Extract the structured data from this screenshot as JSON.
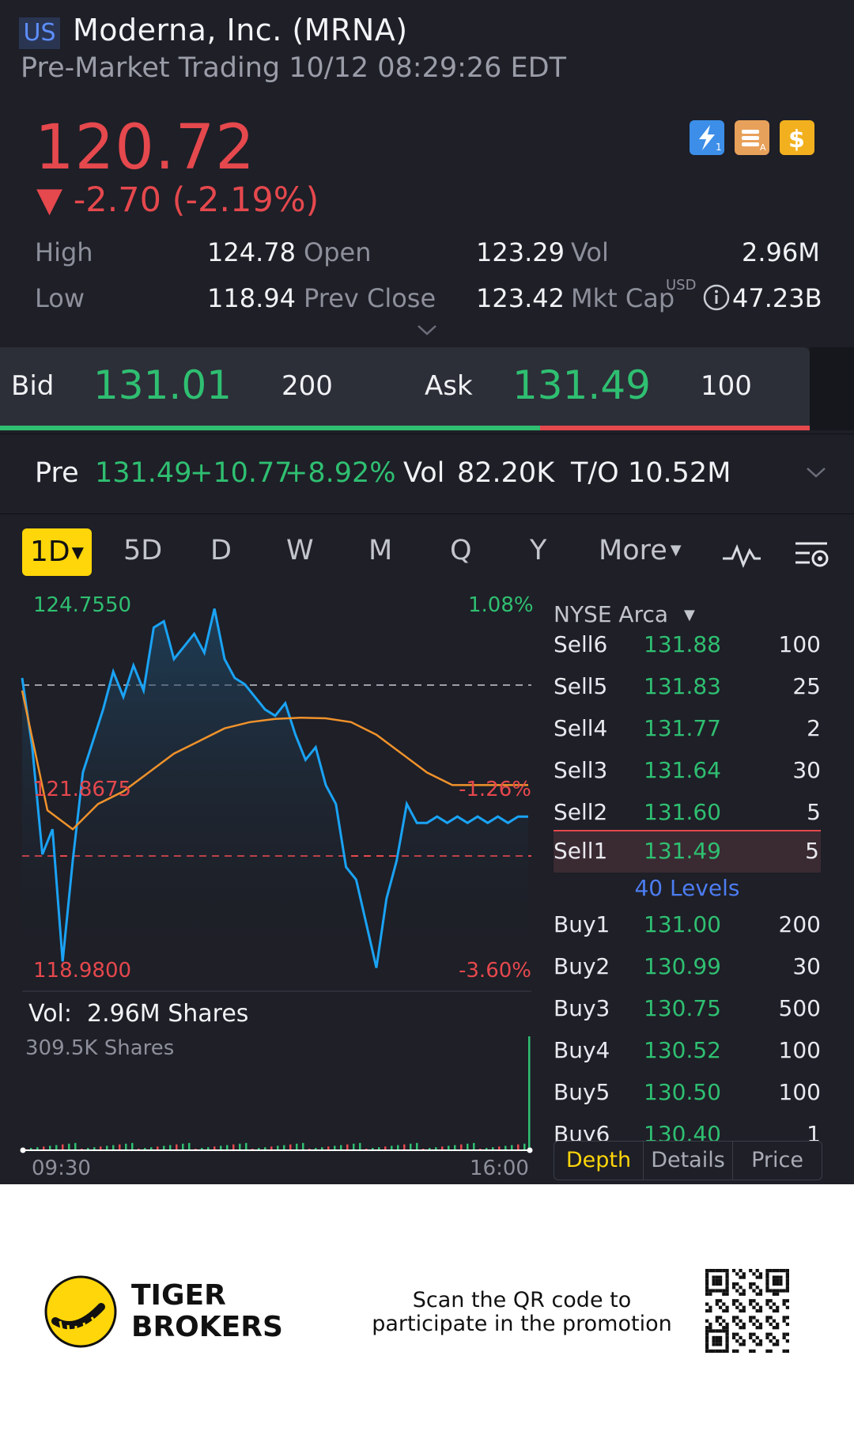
{
  "header": {
    "market": "US",
    "title": "Moderna, Inc. (MRNA)",
    "subtitle": "Pre-Market Trading 10/12 08:29:26 EDT"
  },
  "quote": {
    "price": "120.72",
    "change": "▼ -2.70 (-2.19%)",
    "badges": [
      "lightning-icon",
      "layers-icon",
      "dollar-icon"
    ],
    "stats": {
      "high_label": "High",
      "high": "124.78",
      "open_label": "Open",
      "open": "123.29",
      "vol_label": "Vol",
      "vol": "2.96M",
      "low_label": "Low",
      "low": "118.94",
      "prev_close_label": "Prev Close",
      "prev_close": "123.42",
      "mkt_cap_label": "Mkt Cap",
      "mkt_cap_unit": "USD",
      "mkt_cap": "47.23B"
    }
  },
  "bidask": {
    "bid_label": "Bid",
    "bid": "131.01",
    "bid_size": "200",
    "ask_label": "Ask",
    "ask": "131.49",
    "ask_size": "100",
    "bid_ratio": 0.667
  },
  "premarket": {
    "label": "Pre",
    "price": "131.49",
    "change": "+10.77",
    "pct": "+8.92%",
    "vol_label": "Vol",
    "vol": "82.20K",
    "to_label": "T/O",
    "to": "10.52M"
  },
  "periods": {
    "active": "1D",
    "items": [
      "5D",
      "D",
      "W",
      "M",
      "Q",
      "Y"
    ],
    "more": "More"
  },
  "chart": {
    "hi_price": "124.7550",
    "hi_pct": "1.08%",
    "mid_price": "121.8675",
    "mid_pct": "-1.26%",
    "lo_price": "118.9800",
    "lo_pct": "-3.60%",
    "vol_label": "Vol:",
    "vol_value": "2.96M Shares",
    "vol_max": "309.5K Shares",
    "time_start": "09:30",
    "time_end": "16:00"
  },
  "chart_data": {
    "type": "line",
    "title": "",
    "xlabel": "",
    "ylabel": "",
    "ylim": [
      118.98,
      124.755
    ],
    "x_range": [
      "09:30",
      "16:00"
    ],
    "reference_prev_close": 123.42,
    "series": [
      {
        "x": [
          0,
          2,
          4,
          6,
          8,
          10,
          12,
          14,
          16,
          18,
          20,
          22,
          24,
          26,
          28,
          30,
          32,
          34,
          36,
          38,
          40,
          42,
          44,
          46,
          48,
          50,
          52,
          54,
          56,
          58,
          60,
          62,
          64,
          66,
          68,
          70,
          72,
          74,
          76,
          78,
          80,
          82,
          84,
          86,
          88,
          90,
          92,
          94,
          96,
          98,
          100
        ],
        "y": [
          123.6,
          122.5,
          120.8,
          121.2,
          119.1,
          120.7,
          122.1,
          122.6,
          123.1,
          123.7,
          123.3,
          123.8,
          123.4,
          124.4,
          124.5,
          123.9,
          124.1,
          124.3,
          124.0,
          124.7,
          123.9,
          123.6,
          123.5,
          123.3,
          123.1,
          123.0,
          123.2,
          122.7,
          122.3,
          122.5,
          121.9,
          121.6,
          120.6,
          120.4,
          119.7,
          119.0,
          120.1,
          120.7,
          121.6,
          121.3,
          121.3,
          121.4,
          121.3,
          121.4,
          121.3,
          121.4,
          121.3,
          121.4,
          121.3,
          121.4,
          121.4
        ]
      },
      {
        "x": [
          0,
          5,
          10,
          15,
          20,
          25,
          30,
          35,
          40,
          45,
          50,
          55,
          60,
          65,
          70,
          75,
          80,
          85,
          90,
          95,
          100
        ],
        "y": [
          123.4,
          121.5,
          121.2,
          121.6,
          121.8,
          122.1,
          122.4,
          122.6,
          122.8,
          122.9,
          122.95,
          122.97,
          122.96,
          122.9,
          122.7,
          122.4,
          122.1,
          121.9,
          121.9,
          121.9,
          121.9
        ]
      }
    ]
  },
  "orderbook": {
    "exchange": "NYSE Arca",
    "sells": [
      {
        "label": "Sell6",
        "price": "131.88",
        "qty": "100"
      },
      {
        "label": "Sell5",
        "price": "131.83",
        "qty": "25"
      },
      {
        "label": "Sell4",
        "price": "131.77",
        "qty": "2"
      },
      {
        "label": "Sell3",
        "price": "131.64",
        "qty": "30"
      },
      {
        "label": "Sell2",
        "price": "131.60",
        "qty": "5"
      },
      {
        "label": "Sell1",
        "price": "131.49",
        "qty": "5"
      }
    ],
    "levels_link": "40 Levels",
    "buys": [
      {
        "label": "Buy1",
        "price": "131.00",
        "qty": "200"
      },
      {
        "label": "Buy2",
        "price": "130.99",
        "qty": "30"
      },
      {
        "label": "Buy3",
        "price": "130.75",
        "qty": "500"
      },
      {
        "label": "Buy4",
        "price": "130.52",
        "qty": "100"
      },
      {
        "label": "Buy5",
        "price": "130.50",
        "qty": "100"
      },
      {
        "label": "Buy6",
        "price": "130.40",
        "qty": "1"
      }
    ],
    "tabs": [
      "Depth",
      "Details",
      "Price"
    ]
  },
  "footer": {
    "brand_line1": "TIGER",
    "brand_line2": "BROKERS",
    "promo_line1": "Scan the QR code to",
    "promo_line2": "participate in the promotion"
  },
  "colors": {
    "up": "#2fbf71",
    "down": "#e5484d",
    "price_line": "#1aa3f5",
    "avg_line": "#f0922b",
    "active_tab": "#ffd60a",
    "link": "#4c7cf0"
  }
}
